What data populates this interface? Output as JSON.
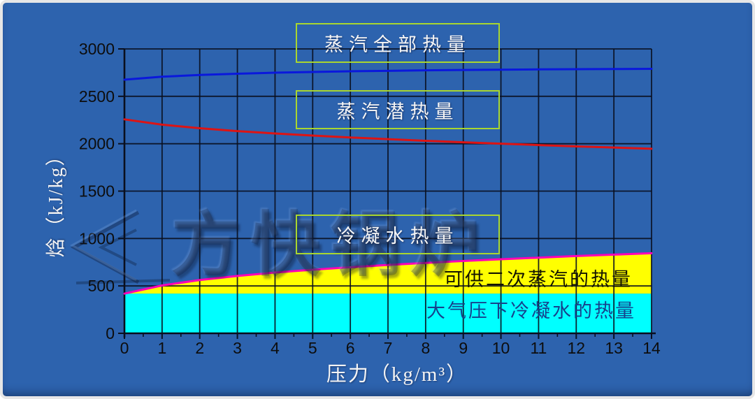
{
  "frame": {
    "background": "#2d63ae",
    "border_color": "#e6e6e6"
  },
  "watermark": {
    "text": "方快锅炉",
    "logo": "double-chevron-left-icon"
  },
  "callouts": [
    {
      "label": "蒸汽全部热量"
    },
    {
      "label": "蒸汽潜热量"
    },
    {
      "label": "冷凝水热量"
    }
  ],
  "area_labels": {
    "flash_steam": "可供二次蒸汽的热量",
    "atmospheric_condensate": "大气压下冷凝水的热量"
  },
  "chart_data": {
    "type": "line",
    "title": "",
    "xlabel": "压力（kg/m³）",
    "ylabel": "焓（kJ/kg）",
    "xlim": [
      0,
      14
    ],
    "ylim": [
      0,
      3000
    ],
    "x_ticks": [
      0,
      1,
      2,
      3,
      4,
      5,
      6,
      7,
      8,
      9,
      10,
      11,
      12,
      13,
      14
    ],
    "x_minor_tick_step": 0.5,
    "y_ticks": [
      0,
      500,
      1000,
      1500,
      2000,
      2500,
      3000
    ],
    "grid": "on",
    "legend_position": "inline-callout-boxes",
    "x": [
      0,
      1,
      2,
      3,
      4,
      5,
      6,
      7,
      8,
      9,
      10,
      11,
      12,
      13,
      14
    ],
    "series": [
      {
        "name": "蒸汽全部热量",
        "type": "line",
        "color": "#0a18dc",
        "values": [
          2676,
          2707,
          2725,
          2738,
          2749,
          2757,
          2764,
          2769,
          2774,
          2778,
          2781,
          2784,
          2786,
          2788,
          2790
        ]
      },
      {
        "name": "蒸汽潜热量",
        "type": "line",
        "color": "#dd1414",
        "values": [
          2257,
          2201,
          2163,
          2133,
          2108,
          2086,
          2066,
          2048,
          2031,
          2015,
          2000,
          1986,
          1972,
          1960,
          1947
        ]
      },
      {
        "name": "冷凝水热量（可供二次蒸汽的热量）",
        "type": "area",
        "line_color": "#ff00b8",
        "fill_color": "#ffff00",
        "base": 419,
        "values": [
          419,
          505,
          562,
          605,
          641,
          671,
          697,
          721,
          743,
          763,
          781,
          798,
          815,
          830,
          845
        ]
      },
      {
        "name": "大气压下冷凝水的热量",
        "type": "area",
        "fill_color": "#00ffff",
        "base": 0,
        "constant_value": 419
      }
    ],
    "style": {
      "grid_color": "#0a0f1e",
      "tick_label_color": "#0d0d0d",
      "tick_font_px": 23
    }
  }
}
